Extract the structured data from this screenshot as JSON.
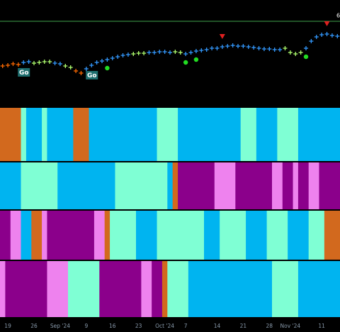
{
  "chart_data": {
    "type": "ohlc",
    "ylim": [
      50,
      65
    ],
    "values": [
      55.7,
      55.8,
      56.0,
      55.9,
      56.2,
      56.3,
      56.1,
      56.2,
      56.3,
      56.3,
      56.1,
      56.0,
      55.7,
      55.5,
      55.0,
      54.7,
      55.3,
      55.8,
      56.2,
      56.4,
      56.6,
      56.8,
      57.0,
      57.2,
      57.3,
      57.4,
      57.5,
      57.5,
      57.6,
      57.6,
      57.7,
      57.7,
      57.6,
      57.7,
      57.6,
      57.4,
      57.6,
      57.8,
      57.9,
      58.0,
      58.2,
      58.2,
      58.4,
      58.5,
      58.6,
      58.5,
      58.5,
      58.4,
      58.3,
      58.2,
      58.1,
      58.1,
      58.0,
      58.0,
      58.2,
      57.6,
      57.4,
      57.6,
      58.2,
      59.2,
      59.8,
      60.1,
      60.2,
      60.0,
      59.9
    ],
    "colors": [
      "#ff6a00",
      "#ff6a00",
      "#ff6a00",
      "#ff6a00",
      "#3399ff",
      "#3399ff",
      "#b0ff70",
      "#b0ff70",
      "#b0ff70",
      "#b0ff70",
      "#3399ff",
      "#3399ff",
      "#b0ff70",
      "#b0ff70",
      "#ff6a00",
      "#ff6a00",
      "#3399ff",
      "#3399ff",
      "#3399ff",
      "#3399ff",
      "#3399ff",
      "#3399ff",
      "#3399ff",
      "#3399ff",
      "#3399ff",
      "#b0ff70",
      "#b0ff70",
      "#b0ff70",
      "#3399ff",
      "#3399ff",
      "#3399ff",
      "#3399ff",
      "#3399ff",
      "#b0ff70",
      "#b0ff70",
      "#3399ff",
      "#3399ff",
      "#3399ff",
      "#3399ff",
      "#3399ff",
      "#3399ff",
      "#3399ff",
      "#3399ff",
      "#3399ff",
      "#3399ff",
      "#3399ff",
      "#3399ff",
      "#3399ff",
      "#3399ff",
      "#3399ff",
      "#3399ff",
      "#3399ff",
      "#3399ff",
      "#3399ff",
      "#b0ff70",
      "#b0ff70",
      "#b0ff70",
      "#b0ff70",
      "#3399ff",
      "#3399ff",
      "#3399ff",
      "#3399ff",
      "#3399ff",
      "#3399ff",
      "#3399ff"
    ],
    "reference_line": {
      "value": 62,
      "label": "6",
      "color": "#3fa34d"
    },
    "go_signals": [
      {
        "index": 4,
        "label": "Go"
      },
      {
        "index": 17,
        "label": "Go"
      }
    ],
    "dots": {
      "color": "#22dd22",
      "indices": [
        20,
        35,
        37,
        58
      ]
    },
    "triangles": {
      "color": "#e02020",
      "indices": [
        42,
        62
      ]
    },
    "bands": [
      {
        "segments": [
          {
            "color": "#d2691e",
            "n": 4
          },
          {
            "color": "#7fffd4",
            "n": 1
          },
          {
            "color": "#00b4f0",
            "n": 3
          },
          {
            "color": "#7fffd4",
            "n": 1
          },
          {
            "color": "#00b4f0",
            "n": 5
          },
          {
            "color": "#d2691e",
            "n": 3
          },
          {
            "color": "#00b4f0",
            "n": 13
          },
          {
            "color": "#7fffd4",
            "n": 4
          },
          {
            "color": "#00b4f0",
            "n": 12
          },
          {
            "color": "#7fffd4",
            "n": 3
          },
          {
            "color": "#00b4f0",
            "n": 4
          },
          {
            "color": "#7fffd4",
            "n": 4
          },
          {
            "color": "#00b4f0",
            "n": 8
          }
        ]
      },
      {
        "segments": [
          {
            "color": "#00b4f0",
            "n": 4
          },
          {
            "color": "#7fffd4",
            "n": 7
          },
          {
            "color": "#00b4f0",
            "n": 11
          },
          {
            "color": "#7fffd4",
            "n": 10
          },
          {
            "color": "#00b4f0",
            "n": 1
          },
          {
            "color": "#d2691e",
            "n": 1
          },
          {
            "color": "#8b008b",
            "n": 7
          },
          {
            "color": "#ee82ee",
            "n": 4
          },
          {
            "color": "#8b008b",
            "n": 7
          },
          {
            "color": "#ee82ee",
            "n": 2
          },
          {
            "color": "#8b008b",
            "n": 2
          },
          {
            "color": "#ee82ee",
            "n": 1
          },
          {
            "color": "#8b008b",
            "n": 2
          },
          {
            "color": "#ee82ee",
            "n": 2
          },
          {
            "color": "#8b008b",
            "n": 4
          }
        ]
      },
      {
        "segments": [
          {
            "color": "#8b008b",
            "n": 2
          },
          {
            "color": "#ee82ee",
            "n": 2
          },
          {
            "color": "#00b4f0",
            "n": 2
          },
          {
            "color": "#d2691e",
            "n": 2
          },
          {
            "color": "#ee82ee",
            "n": 1
          },
          {
            "color": "#8b008b",
            "n": 9
          },
          {
            "color": "#ee82ee",
            "n": 2
          },
          {
            "color": "#d2691e",
            "n": 1
          },
          {
            "color": "#7fffd4",
            "n": 5
          },
          {
            "color": "#00b4f0",
            "n": 4
          },
          {
            "color": "#7fffd4",
            "n": 9
          },
          {
            "color": "#00b4f0",
            "n": 3
          },
          {
            "color": "#7fffd4",
            "n": 5
          },
          {
            "color": "#00b4f0",
            "n": 4
          },
          {
            "color": "#7fffd4",
            "n": 4
          },
          {
            "color": "#00b4f0",
            "n": 4
          },
          {
            "color": "#7fffd4",
            "n": 3
          },
          {
            "color": "#d2691e",
            "n": 3
          }
        ]
      },
      {
        "segments": [
          {
            "color": "#ee82ee",
            "n": 1
          },
          {
            "color": "#8b008b",
            "n": 8
          },
          {
            "color": "#ee82ee",
            "n": 4
          },
          {
            "color": "#7fffd4",
            "n": 6
          },
          {
            "color": "#8b008b",
            "n": 8
          },
          {
            "color": "#ee82ee",
            "n": 2
          },
          {
            "color": "#8b008b",
            "n": 2
          },
          {
            "color": "#d2691e",
            "n": 1
          },
          {
            "color": "#7fffd4",
            "n": 4
          },
          {
            "color": "#00b4f0",
            "n": 16
          },
          {
            "color": "#7fffd4",
            "n": 5
          },
          {
            "color": "#00b4f0",
            "n": 8
          }
        ]
      }
    ],
    "xticks": [
      {
        "value": 1,
        "label": "19"
      },
      {
        "value": 6,
        "label": "26"
      },
      {
        "value": 11,
        "label": "Sep '24"
      },
      {
        "value": 16,
        "label": "9"
      },
      {
        "value": 21,
        "label": "16"
      },
      {
        "value": 26,
        "label": "23"
      },
      {
        "value": 31,
        "label": "Oct '24"
      },
      {
        "value": 35,
        "label": "7"
      },
      {
        "value": 41,
        "label": "14"
      },
      {
        "value": 46,
        "label": "21"
      },
      {
        "value": 51,
        "label": "28"
      },
      {
        "value": 55,
        "label": "Nov '24"
      },
      {
        "value": 61,
        "label": "11"
      }
    ]
  }
}
